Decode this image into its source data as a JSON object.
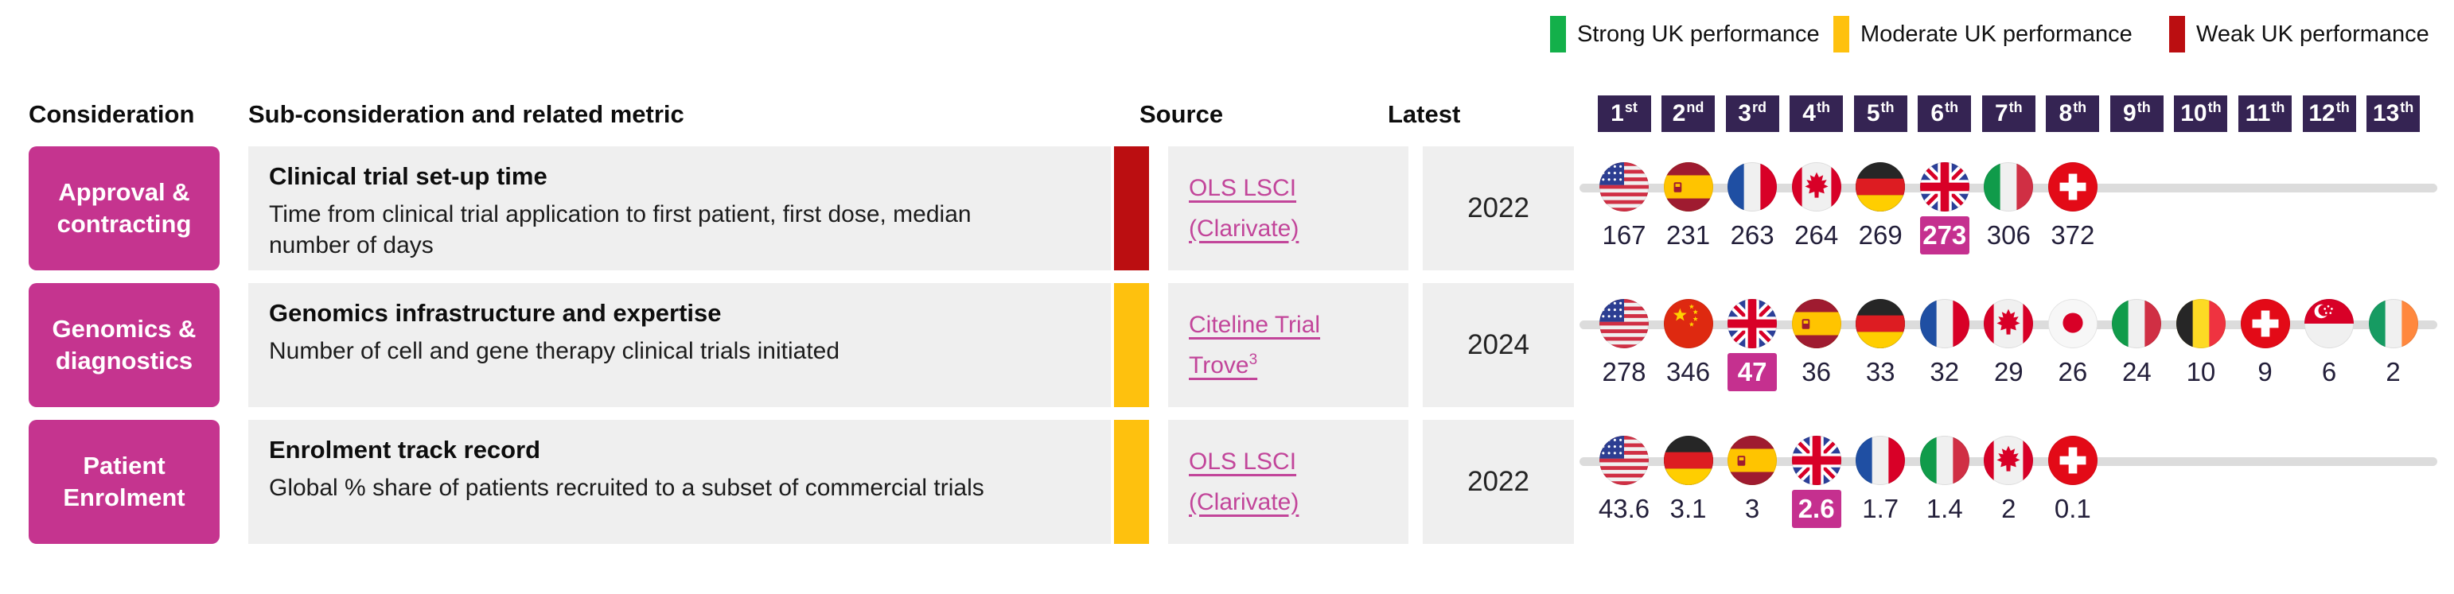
{
  "colors": {
    "magenta": "#c5348f",
    "highlight_magenta": "#c5308f",
    "badge_purple": "#352453",
    "strong_green": "#13b04a",
    "moderate_yellow": "#fec10e",
    "weak_red": "#bb0e11",
    "cell_gray": "#efefef",
    "track_gray": "#dcdcdc",
    "link_pink": "#c2459a"
  },
  "legend": {
    "items": [
      {
        "label": "Strong UK performance",
        "color": "#13b04a"
      },
      {
        "label": "Moderate UK performance",
        "color": "#fec10e"
      },
      {
        "label": "Weak UK performance",
        "color": "#bb0e11"
      }
    ]
  },
  "header": {
    "consideration": "Consideration",
    "sub_consideration": "Sub-consideration and related metric",
    "source": "Source",
    "latest": "Latest",
    "ranks": [
      {
        "num": "1",
        "suffix": "st"
      },
      {
        "num": "2",
        "suffix": "nd"
      },
      {
        "num": "3",
        "suffix": "rd"
      },
      {
        "num": "4",
        "suffix": "th"
      },
      {
        "num": "5",
        "suffix": "th"
      },
      {
        "num": "6",
        "suffix": "th"
      },
      {
        "num": "7",
        "suffix": "th"
      },
      {
        "num": "8",
        "suffix": "th"
      },
      {
        "num": "9",
        "suffix": "th"
      },
      {
        "num": "10",
        "suffix": "th"
      },
      {
        "num": "11",
        "suffix": "th"
      },
      {
        "num": "12",
        "suffix": "th"
      },
      {
        "num": "13",
        "suffix": "th"
      }
    ]
  },
  "rows": [
    {
      "consideration": "Approval & contracting",
      "metric_title": "Clinical trial set-up time",
      "metric_desc": "Time from clinical trial application to first patient, first dose, median number of days",
      "status": "weak",
      "status_color": "#bb0e11",
      "source_text": "OLS LSCI (Clarivate)",
      "source_sup": "",
      "latest": "2022",
      "ranking": [
        {
          "country": "usa",
          "flag": "us",
          "value": "167",
          "highlight": false
        },
        {
          "country": "spain",
          "flag": "es",
          "value": "231",
          "highlight": false
        },
        {
          "country": "france",
          "flag": "fr",
          "value": "263",
          "highlight": false
        },
        {
          "country": "canada",
          "flag": "ca",
          "value": "264",
          "highlight": false
        },
        {
          "country": "germany",
          "flag": "de",
          "value": "269",
          "highlight": false
        },
        {
          "country": "uk",
          "flag": "gb",
          "value": "273",
          "highlight": true
        },
        {
          "country": "italy",
          "flag": "it",
          "value": "306",
          "highlight": false
        },
        {
          "country": "switzerland",
          "flag": "ch",
          "value": "372",
          "highlight": false
        }
      ]
    },
    {
      "consideration": "Genomics & diagnostics",
      "metric_title": "Genomics infrastructure and expertise",
      "metric_desc": "Number of cell and gene therapy clinical trials initiated",
      "status": "moderate",
      "status_color": "#fec10e",
      "source_text": "Citeline Trial Trove",
      "source_sup": "3",
      "latest": "2024",
      "ranking": [
        {
          "country": "usa",
          "flag": "us",
          "value": "278",
          "highlight": false
        },
        {
          "country": "china",
          "flag": "cn",
          "value": "346",
          "highlight": false
        },
        {
          "country": "uk",
          "flag": "gb",
          "value": "47",
          "highlight": true
        },
        {
          "country": "spain",
          "flag": "es",
          "value": "36",
          "highlight": false
        },
        {
          "country": "germany",
          "flag": "de",
          "value": "33",
          "highlight": false
        },
        {
          "country": "france",
          "flag": "fr",
          "value": "32",
          "highlight": false
        },
        {
          "country": "canada",
          "flag": "ca",
          "value": "29",
          "highlight": false
        },
        {
          "country": "japan",
          "flag": "jp",
          "value": "26",
          "highlight": false
        },
        {
          "country": "italy",
          "flag": "it",
          "value": "24",
          "highlight": false
        },
        {
          "country": "belgium",
          "flag": "be",
          "value": "10",
          "highlight": false
        },
        {
          "country": "switzerland",
          "flag": "ch",
          "value": "9",
          "highlight": false
        },
        {
          "country": "singapore",
          "flag": "sg",
          "value": "6",
          "highlight": false
        },
        {
          "country": "ireland",
          "flag": "ie",
          "value": "2",
          "highlight": false
        }
      ]
    },
    {
      "consideration": "Patient Enrolment",
      "metric_title": "Enrolment track record",
      "metric_desc": "Global % share of patients recruited to a subset of commercial trials",
      "status": "moderate",
      "status_color": "#fec10e",
      "source_text": "OLS LSCI (Clarivate)",
      "source_sup": "",
      "latest": "2022",
      "ranking": [
        {
          "country": "usa",
          "flag": "us",
          "value": "43.6",
          "highlight": false
        },
        {
          "country": "germany",
          "flag": "de",
          "value": "3.1",
          "highlight": false
        },
        {
          "country": "spain",
          "flag": "es",
          "value": "3",
          "highlight": false
        },
        {
          "country": "uk",
          "flag": "gb",
          "value": "2.6",
          "highlight": true
        },
        {
          "country": "france",
          "flag": "fr",
          "value": "1.7",
          "highlight": false
        },
        {
          "country": "italy",
          "flag": "it",
          "value": "1.4",
          "highlight": false
        },
        {
          "country": "canada",
          "flag": "ca",
          "value": "2",
          "highlight": false
        },
        {
          "country": "switzerland",
          "flag": "ch",
          "value": "0.1",
          "highlight": false
        }
      ]
    }
  ],
  "chart_data": [
    {
      "type": "table",
      "title": "Clinical trial set-up time",
      "metric": "Time from clinical trial application to first patient, first dose, median number of days",
      "source": "OLS LSCI (Clarivate)",
      "latest_year": 2022,
      "uk_status": "Weak UK performance",
      "uk_rank": "6th",
      "categories": [
        "USA",
        "Spain",
        "France",
        "Canada",
        "Germany",
        "UK",
        "Italy",
        "Switzerland"
      ],
      "values": [
        167,
        231,
        263,
        264,
        269,
        273,
        306,
        372
      ]
    },
    {
      "type": "table",
      "title": "Genomics infrastructure and expertise",
      "metric": "Number of cell and gene therapy clinical trials initiated",
      "source": "Citeline Trial Trove",
      "latest_year": 2024,
      "uk_status": "Moderate UK performance",
      "uk_rank": "3rd",
      "categories": [
        "USA",
        "China",
        "UK",
        "Spain",
        "Germany",
        "France",
        "Canada",
        "Japan",
        "Italy",
        "Belgium",
        "Switzerland",
        "Singapore",
        "Ireland"
      ],
      "values": [
        278,
        346,
        47,
        36,
        33,
        32,
        29,
        26,
        24,
        10,
        9,
        6,
        2
      ]
    },
    {
      "type": "table",
      "title": "Enrolment track record",
      "metric": "Global % share of patients recruited to a subset of commercial trials",
      "source": "OLS LSCI (Clarivate)",
      "latest_year": 2022,
      "uk_status": "Moderate UK performance",
      "uk_rank": "4th",
      "categories": [
        "USA",
        "Germany",
        "Spain",
        "UK",
        "France",
        "Italy",
        "Canada",
        "Switzerland"
      ],
      "values": [
        43.6,
        3.1,
        3,
        2.6,
        1.7,
        1.4,
        2,
        0.1
      ]
    }
  ]
}
